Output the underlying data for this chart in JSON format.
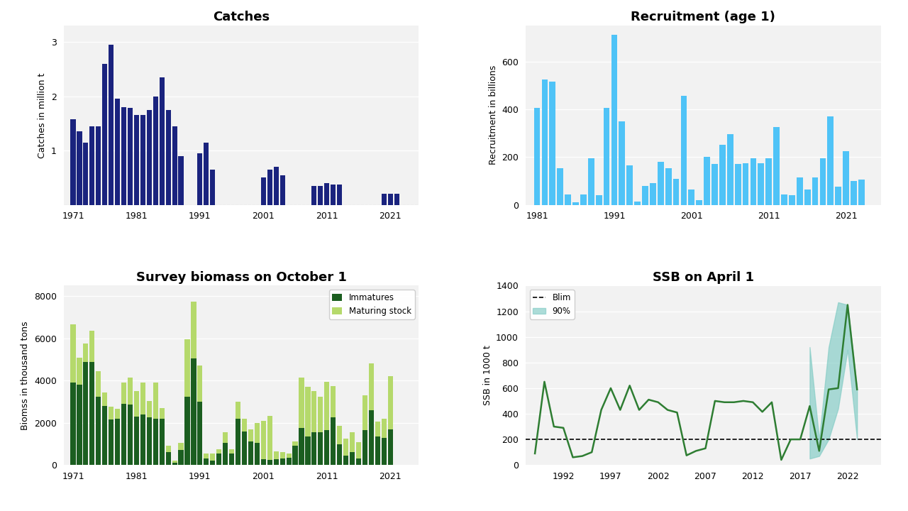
{
  "catches_years": [
    1971,
    1972,
    1973,
    1974,
    1975,
    1976,
    1977,
    1978,
    1979,
    1980,
    1981,
    1982,
    1983,
    1984,
    1985,
    1986,
    1987,
    1988,
    1989,
    1990,
    1991,
    1992,
    1993,
    1994,
    1995,
    1996,
    1997,
    1998,
    1999,
    2000,
    2001,
    2002,
    2003,
    2004,
    2005,
    2006,
    2007,
    2008,
    2009,
    2010,
    2011,
    2012,
    2013,
    2014,
    2015,
    2016,
    2017,
    2018,
    2019,
    2020,
    2021,
    2022,
    2023
  ],
  "catches_values": [
    1.58,
    1.35,
    1.15,
    1.45,
    1.45,
    2.6,
    2.95,
    1.95,
    1.8,
    1.78,
    1.65,
    1.65,
    1.75,
    2.0,
    2.35,
    1.75,
    1.45,
    0.9,
    0.0,
    0.0,
    0.95,
    1.15,
    0.65,
    0.0,
    0.0,
    0.0,
    0.0,
    0.0,
    0.0,
    0.0,
    0.5,
    0.65,
    0.7,
    0.55,
    0.0,
    0.0,
    0.0,
    0.0,
    0.35,
    0.35,
    0.4,
    0.38,
    0.38,
    0.0,
    0.0,
    0.0,
    0.0,
    0.0,
    0.0,
    0.2,
    0.2,
    0.2,
    0.0
  ],
  "catches_color": "#1a237e",
  "recruitment_years": [
    1981,
    1982,
    1983,
    1984,
    1985,
    1986,
    1987,
    1988,
    1989,
    1990,
    1991,
    1992,
    1993,
    1994,
    1995,
    1996,
    1997,
    1998,
    1999,
    2000,
    2001,
    2002,
    2003,
    2004,
    2005,
    2006,
    2007,
    2008,
    2009,
    2010,
    2011,
    2012,
    2013,
    2014,
    2015,
    2016,
    2017,
    2018,
    2019,
    2020,
    2021,
    2022,
    2023
  ],
  "recruitment_values": [
    405,
    525,
    515,
    155,
    45,
    10,
    45,
    195,
    40,
    405,
    710,
    350,
    165,
    15,
    80,
    90,
    180,
    155,
    110,
    455,
    65,
    20,
    200,
    170,
    250,
    295,
    170,
    175,
    195,
    175,
    195,
    325,
    45,
    40,
    115,
    65,
    115,
    195,
    370,
    75,
    225,
    100,
    105
  ],
  "recruitment_color": "#4fc3f7",
  "survey_years": [
    1971,
    1972,
    1973,
    1974,
    1975,
    1976,
    1977,
    1978,
    1979,
    1980,
    1981,
    1982,
    1983,
    1984,
    1985,
    1986,
    1987,
    1988,
    1989,
    1990,
    1991,
    1992,
    1993,
    1994,
    1995,
    1996,
    1997,
    1998,
    1999,
    2000,
    2001,
    2002,
    2003,
    2004,
    2005,
    2006,
    2007,
    2008,
    2009,
    2010,
    2011,
    2012,
    2013,
    2014,
    2015,
    2016,
    2017,
    2018,
    2019,
    2020,
    2021,
    2022,
    2023
  ],
  "immatures": [
    3900,
    3800,
    4900,
    4900,
    3250,
    2800,
    2150,
    2200,
    2900,
    2850,
    2300,
    2400,
    2250,
    2200,
    2200,
    600,
    100,
    700,
    3250,
    5050,
    3000,
    300,
    200,
    550,
    1050,
    550,
    2200,
    1600,
    1100,
    1050,
    280,
    240,
    280,
    300,
    330,
    900,
    1750,
    1350,
    1550,
    1550,
    1650,
    2250,
    970,
    450,
    600,
    320,
    1650,
    2600,
    1350,
    1300,
    1700,
    0,
    0
  ],
  "maturing": [
    2750,
    1300,
    870,
    1450,
    1200,
    650,
    630,
    450,
    1000,
    1300,
    1200,
    1500,
    800,
    1700,
    500,
    300,
    100,
    350,
    2700,
    2700,
    1700,
    250,
    350,
    200,
    500,
    200,
    800,
    600,
    600,
    950,
    1800,
    2100,
    350,
    300,
    200,
    200,
    2400,
    2350,
    1950,
    1700,
    2300,
    1500,
    900,
    800,
    950,
    750,
    1650,
    2200,
    700,
    900,
    2500,
    0,
    0
  ],
  "immatures_color": "#1b5e20",
  "maturing_color": "#b5d96b",
  "ssb_years": [
    1989,
    1990,
    1991,
    1992,
    1993,
    1994,
    1995,
    1996,
    1997,
    1998,
    1999,
    2000,
    2001,
    2002,
    2003,
    2004,
    2005,
    2006,
    2007,
    2008,
    2009,
    2010,
    2011,
    2012,
    2013,
    2014,
    2015,
    2016,
    2017,
    2018,
    2019,
    2020,
    2021,
    2022,
    2023
  ],
  "ssb_values": [
    90,
    650,
    300,
    290,
    60,
    70,
    100,
    430,
    600,
    430,
    620,
    430,
    510,
    490,
    430,
    410,
    75,
    110,
    130,
    500,
    490,
    490,
    500,
    490,
    415,
    490,
    40,
    200,
    200,
    460,
    110,
    590,
    600,
    1250,
    590
  ],
  "ssb_lower": [
    null,
    null,
    null,
    null,
    null,
    null,
    null,
    null,
    null,
    null,
    null,
    null,
    null,
    null,
    null,
    null,
    null,
    null,
    null,
    null,
    null,
    null,
    null,
    null,
    null,
    null,
    null,
    null,
    null,
    50,
    70,
    200,
    440,
    900,
    200
  ],
  "ssb_upper": [
    null,
    null,
    null,
    null,
    null,
    null,
    null,
    null,
    null,
    null,
    null,
    null,
    null,
    null,
    null,
    null,
    null,
    null,
    null,
    null,
    null,
    null,
    null,
    null,
    null,
    null,
    null,
    null,
    null,
    920,
    200,
    920,
    1270,
    1250,
    590
  ],
  "ssb_color": "#2e7d32",
  "ssb_ci_color": "#80cbc4",
  "blim": 200,
  "panel_bg": "#f2f2f2",
  "grid_color": "#ffffff"
}
